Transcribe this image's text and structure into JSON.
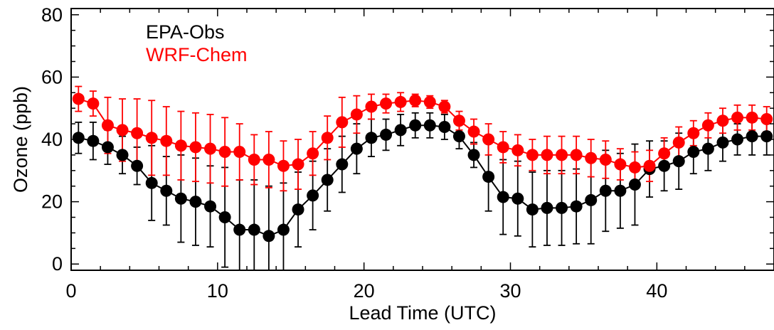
{
  "chart_data": {
    "type": "line",
    "title": "",
    "xlabel": "Lead Time (UTC)",
    "ylabel": "Ozone (ppb)",
    "xlim": [
      0,
      48
    ],
    "ylim": [
      -2,
      82
    ],
    "xticks": [
      0,
      10,
      20,
      30,
      40
    ],
    "yticks": [
      0,
      20,
      40,
      60,
      80
    ],
    "x": [
      0.5,
      1.5,
      2.5,
      3.5,
      4.5,
      5.5,
      6.5,
      7.5,
      8.5,
      9.5,
      10.5,
      11.5,
      12.5,
      13.5,
      14.5,
      15.5,
      16.5,
      17.5,
      18.5,
      19.5,
      20.5,
      21.5,
      22.5,
      23.5,
      24.5,
      25.5,
      26.5,
      27.5,
      28.5,
      29.5,
      30.5,
      31.5,
      32.5,
      33.5,
      34.5,
      35.5,
      36.5,
      37.5,
      38.5,
      39.5,
      40.5,
      41.5,
      42.5,
      43.5,
      44.5,
      45.5,
      46.5,
      47.5
    ],
    "series": [
      {
        "name": "EPA-Obs",
        "color": "#000000",
        "values": [
          40.5,
          39.5,
          37.5,
          35,
          31.5,
          26,
          23.5,
          21,
          20,
          18.5,
          15,
          11,
          11,
          9,
          11,
          17.5,
          22,
          27,
          32,
          37,
          40.5,
          41.5,
          43,
          44.5,
          44.5,
          44,
          41,
          35,
          28,
          21.5,
          21,
          17.5,
          18,
          18,
          18.5,
          20.5,
          23.5,
          23.5,
          25.5,
          30.5,
          31.5,
          33,
          36,
          37,
          39,
          40,
          41,
          41
        ],
        "error": [
          5,
          6,
          5.5,
          6,
          6,
          12,
          11,
          14,
          14,
          13,
          16,
          16,
          16,
          16,
          15,
          12,
          11,
          10,
          9,
          8,
          6,
          5,
          5,
          4,
          4,
          4,
          4,
          4,
          11,
          12,
          12,
          12,
          12,
          12,
          12,
          14,
          13,
          12,
          13,
          9,
          8,
          9,
          7,
          7,
          6,
          5,
          6,
          6
        ]
      },
      {
        "name": "WRF-Chem",
        "color": "#ff0000",
        "values": [
          53,
          51.5,
          44.5,
          43,
          42,
          40.5,
          39.5,
          38,
          37.5,
          37,
          36,
          36,
          33.5,
          33.5,
          31.5,
          32,
          35.5,
          40.5,
          45.5,
          48,
          50.5,
          51.5,
          52,
          52.5,
          52,
          50.5,
          46,
          42.5,
          40,
          37.5,
          36.5,
          35,
          35,
          35,
          35,
          34,
          33.5,
          32,
          31,
          31.5,
          35.5,
          39,
          42,
          44.5,
          46,
          47,
          47,
          46.5
        ],
        "error": [
          4,
          4,
          9,
          10,
          11,
          12,
          11,
          11,
          11,
          11,
          11,
          9,
          8,
          9,
          8,
          8,
          7,
          7,
          8,
          6,
          4,
          3,
          3,
          2,
          2,
          2,
          3,
          4,
          5,
          5,
          5,
          5,
          6,
          6,
          6,
          6,
          6,
          5,
          5,
          5,
          5,
          5,
          4,
          4,
          4,
          4,
          4,
          4
        ]
      }
    ],
    "legend": {
      "placement": "top-left"
    },
    "grid": false
  }
}
